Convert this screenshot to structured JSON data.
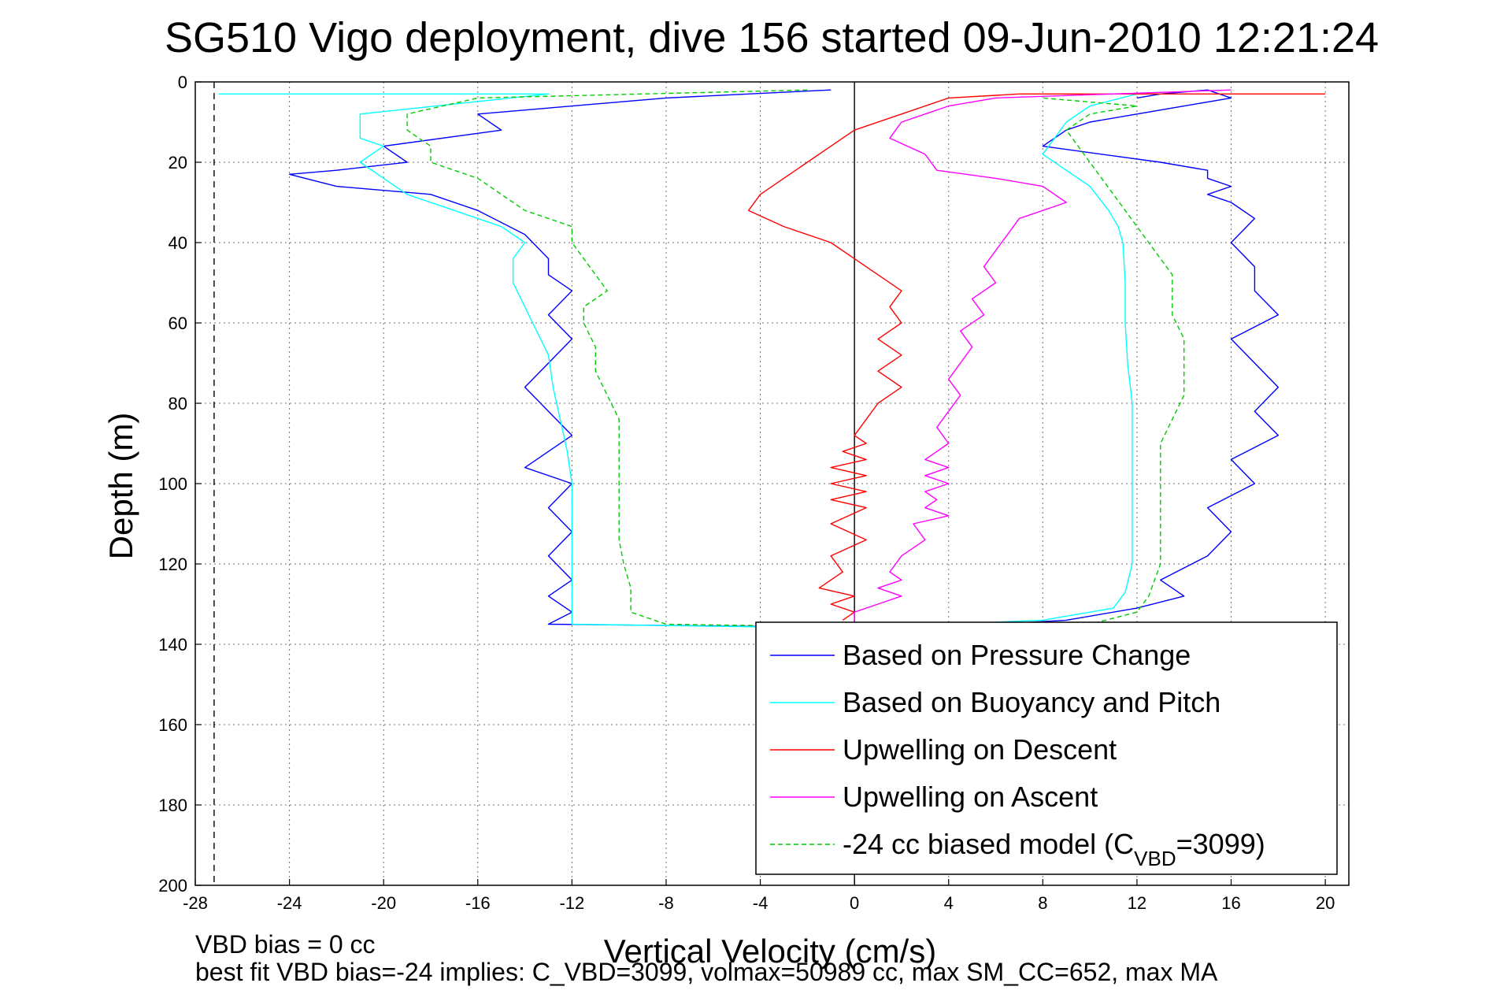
{
  "chart_data": {
    "type": "line",
    "title": "SG510 Vigo deployment, dive 156 started 09-Jun-2010 12:21:24",
    "xlabel": "Vertical Velocity (cm/s)",
    "ylabel": "Depth (m)",
    "xlim": [
      -28,
      21
    ],
    "ylim": [
      200,
      0
    ],
    "y_reversed": true,
    "grid": true,
    "xticks": [
      -28,
      -24,
      -20,
      -16,
      -12,
      -8,
      -4,
      0,
      4,
      8,
      12,
      16,
      20
    ],
    "yticks": [
      0,
      20,
      40,
      60,
      80,
      100,
      120,
      140,
      160,
      180,
      200
    ],
    "legend": {
      "placement": "bottom-right",
      "entries": [
        {
          "label": "Based on Pressure Change",
          "color": "#0000ff",
          "dashed": false
        },
        {
          "label": "Based on Buoyancy and Pitch",
          "color": "#00ffff",
          "dashed": false
        },
        {
          "label": "Upwelling on Descent",
          "color": "#ff0000",
          "dashed": false
        },
        {
          "label": "Upwelling on Ascent",
          "color": "#ff00ff",
          "dashed": false
        },
        {
          "label": "-24 cc biased model (C",
          "sub": "VBD",
          "tail": "=3099)",
          "color": "#00cc00",
          "dashed": true
        }
      ]
    },
    "reference_lines": [
      {
        "orientation": "vertical",
        "x": 0,
        "color": "#000000",
        "style": "solid"
      },
      {
        "orientation": "vertical",
        "x": -27.2,
        "color": "#000000",
        "style": "dashed"
      }
    ],
    "series": [
      {
        "name": "Based on Pressure Change",
        "color": "#0000ff",
        "dashed": false,
        "x": [
          -1,
          -8,
          -16,
          -15,
          -20,
          -19,
          -22,
          -24,
          -22,
          -18,
          -16,
          -14,
          -13,
          -13,
          -12,
          -13,
          -12,
          -13,
          -14,
          -13,
          -12,
          -13,
          -14,
          -12,
          -13,
          -12,
          -13,
          -12,
          -13,
          -12,
          -13,
          3,
          9,
          12,
          14,
          13,
          15,
          16,
          15,
          17,
          16,
          18,
          17,
          18,
          17,
          16,
          18,
          17,
          17,
          16,
          17,
          16,
          15,
          16,
          15,
          15,
          13,
          8,
          9,
          10,
          12,
          14,
          16,
          15,
          13,
          12
        ],
        "y": [
          2,
          4,
          8,
          12,
          16,
          20,
          22,
          23,
          26,
          28,
          32,
          38,
          44,
          48,
          52,
          58,
          64,
          70,
          76,
          82,
          88,
          92,
          96,
          100,
          106,
          112,
          118,
          124,
          128,
          132,
          135,
          136,
          134,
          131,
          128,
          124,
          118,
          112,
          106,
          100,
          94,
          88,
          82,
          76,
          70,
          64,
          58,
          52,
          46,
          40,
          34,
          30,
          28,
          26,
          24,
          22,
          20,
          16,
          12,
          10,
          8,
          6,
          4,
          2,
          3,
          4
        ]
      },
      {
        "name": "Based on Buoyancy and Pitch",
        "color": "#00ffff",
        "dashed": false,
        "x": [
          -27,
          -13,
          -21,
          -21,
          -20,
          -21,
          -20,
          -19,
          -17,
          -15,
          -14,
          -14.5,
          -14.5,
          -14,
          -13.5,
          -13,
          -12.8,
          -12.5,
          -12.2,
          -12,
          -12,
          -12,
          -12,
          -12,
          -12,
          0,
          8,
          11,
          11.5,
          11.8,
          11.8,
          11.8,
          11.8,
          11.8,
          11.6,
          11.5,
          11.5,
          11.4,
          11.2,
          10.8,
          10,
          9,
          8,
          8.5,
          9,
          10,
          12
        ],
        "y": [
          3,
          3,
          8,
          14,
          16,
          20,
          24,
          28,
          32,
          36,
          40,
          44,
          50,
          56,
          62,
          68,
          76,
          84,
          92,
          100,
          110,
          120,
          128,
          132,
          135,
          136,
          134,
          131,
          127,
          120,
          110,
          100,
          90,
          80,
          70,
          60,
          50,
          40,
          36,
          32,
          26,
          22,
          18,
          14,
          10,
          6,
          3
        ]
      },
      {
        "name": "Upwelling on Descent",
        "color": "#ff0000",
        "dashed": false,
        "x": [
          20,
          8,
          7,
          4,
          2,
          0,
          -1,
          -2,
          -3,
          -4,
          -4.5,
          -3,
          -1,
          0,
          1,
          2,
          1.5,
          2,
          1,
          2,
          1,
          2,
          1,
          0.5,
          0,
          0.5,
          -0.5,
          0.5,
          -1,
          0.5,
          -1,
          0.5,
          -1,
          0.5,
          -1,
          0.5,
          -1,
          -0.5,
          -1.5,
          0,
          -1,
          0,
          -0.5
        ],
        "y": [
          3,
          3,
          3,
          4,
          8,
          12,
          16,
          20,
          24,
          28,
          32,
          36,
          40,
          44,
          48,
          52,
          56,
          60,
          64,
          68,
          72,
          76,
          80,
          84,
          88,
          90,
          92,
          94,
          96,
          98,
          100,
          102,
          104,
          106,
          110,
          114,
          118,
          122,
          126,
          128,
          130,
          132,
          134
        ]
      },
      {
        "name": "Upwelling on Ascent",
        "color": "#ff00ff",
        "dashed": false,
        "x": [
          16,
          6,
          4,
          3,
          2,
          1.5,
          3,
          3.5,
          6,
          8,
          9,
          7,
          6.5,
          6,
          5.5,
          6,
          5,
          5.5,
          4.5,
          5,
          4.5,
          4,
          4.5,
          4,
          3.5,
          4,
          3.5,
          3,
          4,
          3,
          4,
          3,
          3.5,
          3,
          4,
          2.5,
          3,
          2,
          1.5,
          2,
          1,
          2,
          1,
          0,
          0
        ],
        "y": [
          2,
          4,
          6,
          8,
          10,
          14,
          18,
          22,
          24,
          26,
          30,
          34,
          38,
          42,
          46,
          50,
          54,
          58,
          62,
          66,
          70,
          74,
          78,
          82,
          86,
          90,
          92,
          94,
          96,
          98,
          100,
          102,
          104,
          106,
          108,
          110,
          114,
          118,
          122,
          124,
          126,
          128,
          130,
          132,
          136
        ]
      },
      {
        "name": "-24 cc biased model (C_VBD=3099)",
        "color": "#00cc00",
        "dashed": true,
        "x": [
          -2,
          -16,
          -19,
          -19,
          -18,
          -18,
          -16,
          -15,
          -14,
          -12,
          -12,
          -11.5,
          -11,
          -10.5,
          -11.5,
          -11.5,
          -11,
          -11,
          -10.5,
          -10,
          -10,
          -10,
          -10,
          -10,
          -10,
          -9.8,
          -9.5,
          -9.5,
          -8,
          3,
          10,
          12,
          12.5,
          13,
          13,
          13,
          13,
          13.5,
          14,
          14,
          14,
          13.5,
          13.5,
          13.5,
          13,
          12.5,
          12,
          11.5,
          11,
          10.5,
          10,
          9.5,
          9,
          10,
          12,
          8
        ],
        "y": [
          2,
          4,
          8,
          12,
          16,
          20,
          24,
          28,
          32,
          36,
          40,
          44,
          48,
          52,
          56,
          60,
          66,
          72,
          78,
          84,
          90,
          96,
          102,
          108,
          114,
          120,
          126,
          132,
          135,
          136,
          135,
          132,
          128,
          120,
          110,
          100,
          90,
          84,
          78,
          72,
          64,
          58,
          52,
          48,
          44,
          40,
          36,
          32,
          28,
          24,
          20,
          16,
          12,
          8,
          6,
          4
        ]
      }
    ],
    "annotations": [
      "VBD bias = 0 cc",
      "best fit VBD bias=-24 implies: C_VBD=3099, volmax=50989 cc, max SM_CC=652, max MA"
    ]
  }
}
